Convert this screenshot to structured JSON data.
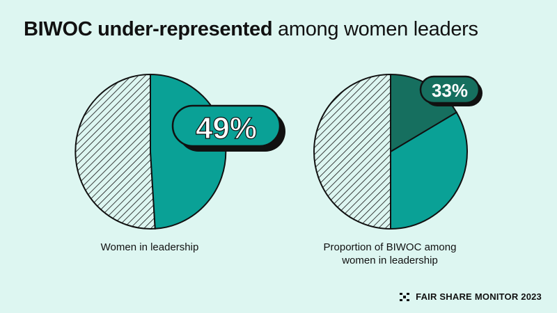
{
  "title": {
    "bold": "BIWOC under-represented",
    "rest": "among women leaders"
  },
  "chart_data": [
    {
      "type": "pie",
      "caption": "Women in leadership",
      "values": [
        49,
        51
      ],
      "label": "49%",
      "colors": [
        "#0aa196",
        "hatched"
      ]
    },
    {
      "type": "pie",
      "caption_line1": "Proportion of BIWOC among",
      "caption_line2": "women in leadership",
      "values": [
        16.5,
        33.5,
        50
      ],
      "label": "33%",
      "colors": [
        "#166f5f",
        "#0aa196",
        "hatched"
      ]
    }
  ],
  "footer": {
    "part1": "FAIR SHARE",
    "part2": "MONITOR 2023"
  },
  "colors": {
    "background": "#ddf6f1",
    "teal": "#0aa196",
    "dark_teal": "#166f5f",
    "ink": "#111111"
  }
}
